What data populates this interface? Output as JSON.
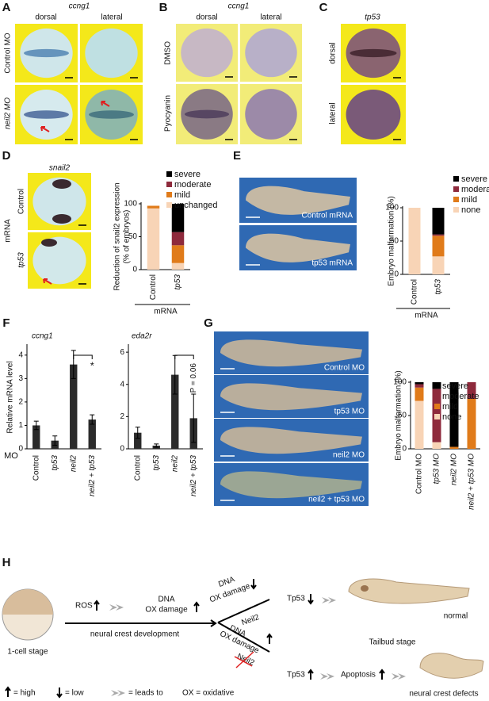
{
  "figure": {
    "A": {
      "letter": "A",
      "gene": "ccng1",
      "views": [
        "dorsal",
        "lateral"
      ],
      "conditions": [
        "Control MO",
        "neil2 MO"
      ]
    },
    "B": {
      "letter": "B",
      "gene": "ccng1",
      "views": [
        "dorsal",
        "lateral"
      ],
      "conditions": [
        "DMSO",
        "Pyocyanin"
      ]
    },
    "C": {
      "letter": "C",
      "gene": "tp53",
      "views": [
        "dorsal",
        "lateral"
      ]
    },
    "D": {
      "letter": "D",
      "gene": "snail2",
      "group": "mRNA",
      "conditions": [
        "Control",
        "tp53"
      ]
    },
    "E": {
      "letter": "E",
      "captions": [
        "Control mRNA",
        "tp53 mRNA"
      ]
    },
    "F": {
      "letter": "F"
    },
    "G": {
      "letter": "G",
      "captions": [
        "Control MO",
        "tp53 MO",
        "neil2 MO",
        "neil2 + tp53 MO"
      ]
    },
    "H": {
      "letter": "H",
      "start": "1-cell stage",
      "ros": "ROS",
      "damage": [
        "DNA",
        "OX damage"
      ],
      "development": "neural crest development",
      "upper_damage": [
        "DNA",
        "OX damage"
      ],
      "upper_enzyme": "Neil2",
      "upper_tp53": "Tp53",
      "normal": "normal",
      "stage": "Tailbud stage",
      "lower_damage": [
        "DNA",
        "OX damage"
      ],
      "lower_enzyme": "Neil2",
      "lower_tp53": "Tp53",
      "apoptosis": "Apoptosis",
      "defects": "neural crest defects",
      "legend": [
        "= high",
        "= low",
        "= leads to",
        "OX = oxidative"
      ]
    }
  },
  "chart_data": [
    {
      "type": "stacked-bar",
      "ylabel": [
        "Reduction of snail2 expression",
        "(% of embryos)"
      ],
      "xlabel": "mRNA",
      "categories": [
        "Control",
        "tp53"
      ],
      "ylim": [
        0,
        100
      ],
      "yticks": [
        0,
        50,
        100
      ],
      "series": [
        {
          "name": "unchanged",
          "color": "#f8d4b6",
          "values": [
            93,
            10
          ]
        },
        {
          "name": "mild",
          "color": "#e07b1a",
          "values": [
            4,
            27
          ]
        },
        {
          "name": "moderate",
          "color": "#8e2a3c",
          "values": [
            0,
            20
          ]
        },
        {
          "name": "severe",
          "color": "#000000",
          "values": [
            0,
            43
          ]
        }
      ]
    },
    {
      "type": "stacked-bar",
      "ylabel": [
        "Embryo malformation (%)"
      ],
      "xlabel": "mRNA",
      "categories": [
        "Control",
        "tp53"
      ],
      "ylim": [
        0,
        100
      ],
      "yticks": [
        0,
        50,
        100
      ],
      "series": [
        {
          "name": "none",
          "color": "#f8d4b6",
          "values": [
            100,
            27
          ]
        },
        {
          "name": "mild",
          "color": "#e07b1a",
          "values": [
            0,
            31
          ]
        },
        {
          "name": "moderate",
          "color": "#8e2a3c",
          "values": [
            0,
            2
          ]
        },
        {
          "name": "severe",
          "color": "#000000",
          "values": [
            0,
            40
          ]
        }
      ]
    },
    {
      "type": "bar",
      "title": "ccng1",
      "ylabel": [
        "Relative mRNA level"
      ],
      "xlabel": "MO",
      "categories": [
        "Control",
        "tp53",
        "neil2",
        "neil2 + tp53"
      ],
      "ylim": [
        0,
        4.4
      ],
      "yticks": [
        0,
        1,
        2,
        3,
        4
      ],
      "values": [
        1.0,
        0.35,
        3.6,
        1.25
      ],
      "errors": [
        0.18,
        0.2,
        0.6,
        0.2
      ],
      "color": "#2b2b2b",
      "annotation": "*"
    },
    {
      "type": "bar",
      "title": "eda2r",
      "categories": [
        "Control",
        "tp53",
        "neil2",
        "neil2 + tp53"
      ],
      "ylim": [
        0,
        6.4
      ],
      "yticks": [
        0,
        2,
        4,
        6
      ],
      "values": [
        1.0,
        0.2,
        4.6,
        1.9
      ],
      "errors": [
        0.35,
        0.1,
        1.2,
        1.5
      ],
      "color": "#2b2b2b",
      "annotation": "P = 0.06"
    },
    {
      "type": "stacked-bar",
      "ylabel": [
        "Embryo malformation (%)"
      ],
      "categories": [
        "Control MO",
        "tp53 MO",
        "neil2 MO",
        "neil2 + tp53 MO"
      ],
      "ylim": [
        0,
        100
      ],
      "yticks": [
        0,
        50,
        100
      ],
      "series": [
        {
          "name": "none",
          "color": "#f8d4b6",
          "values": [
            72,
            10,
            0,
            0
          ]
        },
        {
          "name": "mild",
          "color": "#e07b1a",
          "values": [
            20,
            0,
            3,
            75
          ]
        },
        {
          "name": "moderate",
          "color": "#8e2a3c",
          "values": [
            5,
            80,
            0,
            25
          ]
        },
        {
          "name": "severe",
          "color": "#000000",
          "values": [
            3,
            10,
            97,
            0
          ]
        }
      ]
    }
  ]
}
